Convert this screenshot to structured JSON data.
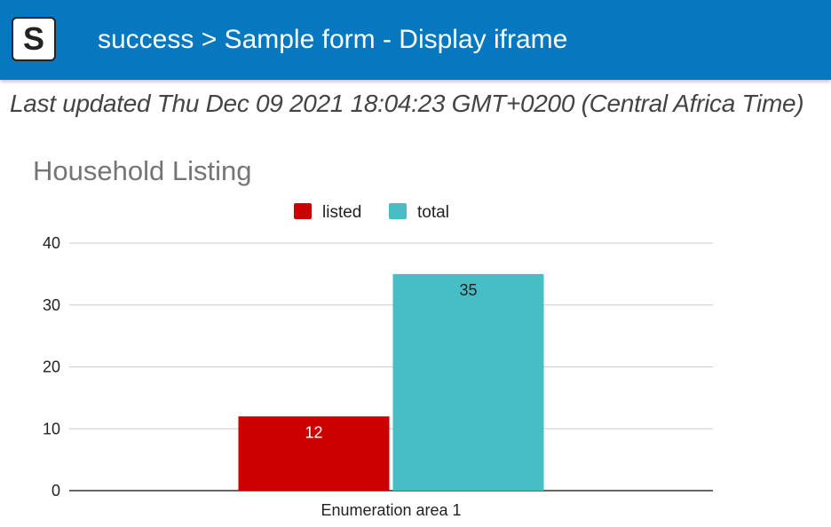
{
  "header": {
    "logo_letter": "S",
    "title": "success > Sample form - Display iframe",
    "background": "#0578c0"
  },
  "last_updated": "Last updated Thu Dec 09 2021 18:04:23 GMT+0200 (Central Africa Time)",
  "chart_data": {
    "type": "bar",
    "title": "Household Listing",
    "categories": [
      "Enumeration area 1"
    ],
    "series": [
      {
        "name": "listed",
        "values": [
          12
        ],
        "color": "#cc0000"
      },
      {
        "name": "total",
        "values": [
          35
        ],
        "color": "#47bdc6"
      }
    ],
    "ylim": [
      0,
      40
    ],
    "yticks": [
      0,
      10,
      20,
      30,
      40
    ],
    "grid": true,
    "legend": "top-center",
    "data_labels": true
  }
}
